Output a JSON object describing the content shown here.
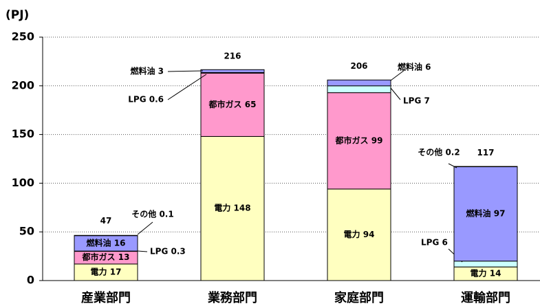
{
  "chart_data": {
    "type": "stacked-bar",
    "y_unit": "(PJ)",
    "categories": [
      "産業部門",
      "業務部門",
      "家庭部門",
      "運輸部門"
    ],
    "series": [
      {
        "name": "電力",
        "color": "#ffffc0",
        "values": [
          17,
          148,
          94,
          14
        ],
        "value_labels": [
          "電力 17",
          "電力 148",
          "電力 94",
          "電力 14"
        ]
      },
      {
        "name": "都市ガス",
        "color": "#ff99cc",
        "values": [
          13,
          65,
          99,
          null
        ],
        "value_labels": [
          "都市ガス 13",
          "都市ガス 65",
          "都市ガス 99",
          null
        ]
      },
      {
        "name": "LPG",
        "color": "#ccffff",
        "values": [
          0.3,
          0.6,
          7,
          6
        ],
        "value_labels": [
          "LPG 0.3",
          "LPG 0.6",
          "LPG 7",
          "LPG 6"
        ]
      },
      {
        "name": "燃料油",
        "color": "#9999ff",
        "values": [
          16,
          3,
          6,
          97
        ],
        "value_labels": [
          "燃料油 16",
          "燃料油 3",
          "燃料油 6",
          "燃料油 97"
        ]
      },
      {
        "name": "その他",
        "color": "#c0c0c0",
        "values": [
          0.1,
          null,
          null,
          0.2
        ],
        "value_labels": [
          "その他 0.1",
          null,
          null,
          "その他 0.2"
        ]
      }
    ],
    "totals": [
      47,
      216,
      206,
      117
    ],
    "ylim": [
      0,
      250
    ],
    "yticks": [
      0,
      50,
      100,
      150,
      200,
      250
    ],
    "grid": true
  }
}
